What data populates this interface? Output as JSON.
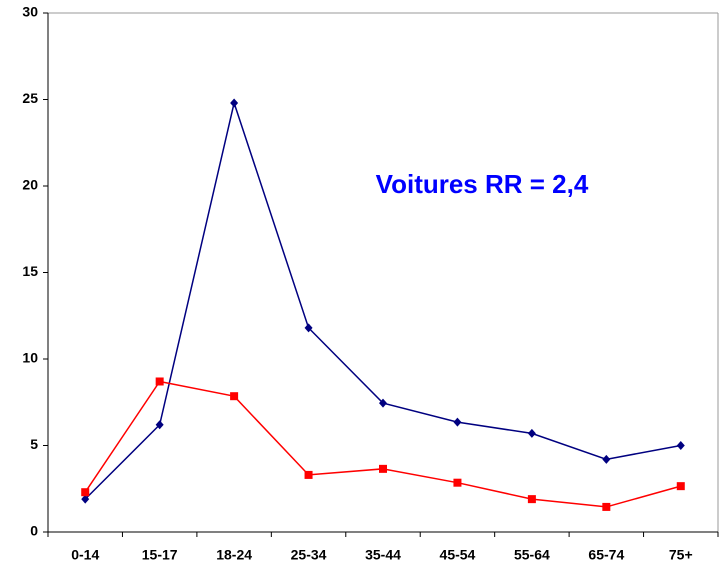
{
  "chart_data": {
    "type": "line",
    "annotation": "Voitures RR = 2,4",
    "categories": [
      "0-14",
      "15-17",
      "18-24",
      "25-34",
      "35-44",
      "45-54",
      "55-64",
      "65-74",
      "75+"
    ],
    "series": [
      {
        "color": "#000080",
        "marker": "diamond",
        "values": [
          1.9,
          6.2,
          24.8,
          11.8,
          7.45,
          6.35,
          5.7,
          4.2,
          5.0
        ]
      },
      {
        "color": "#ff0000",
        "marker": "square",
        "values": [
          2.3,
          8.7,
          7.85,
          3.3,
          3.65,
          2.85,
          1.9,
          1.45,
          2.65
        ]
      }
    ],
    "ylim": [
      0,
      30
    ],
    "yticks": [
      0,
      5,
      10,
      15,
      20,
      25,
      30
    ],
    "grid": false
  }
}
